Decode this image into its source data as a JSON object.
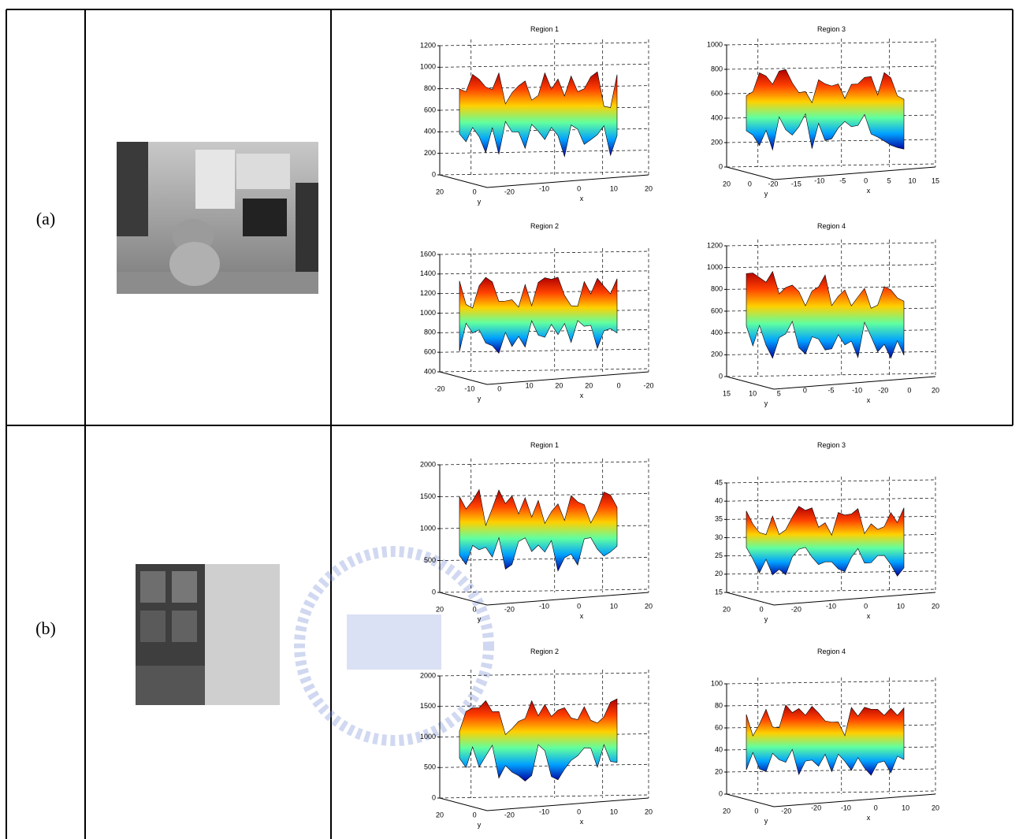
{
  "rows": [
    {
      "label": "(a)",
      "plots": [
        {
          "title": "Region 1",
          "zticks": [
            "0",
            "200",
            "400",
            "600",
            "800",
            "1000",
            "1200"
          ],
          "base_ticks": [
            "20",
            "0",
            "-20",
            "-10",
            "0",
            "10",
            "20"
          ],
          "xlabel": "x",
          "ylabel": "y"
        },
        {
          "title": "Region 3",
          "zticks": [
            "0",
            "200",
            "400",
            "600",
            "800",
            "1000"
          ],
          "base_ticks": [
            "20",
            "0",
            "-20",
            "-15",
            "-10",
            "-5",
            "0",
            "5",
            "10",
            "15"
          ],
          "xlabel": "x",
          "ylabel": "y"
        },
        {
          "title": "Region 2",
          "zticks": [
            "400",
            "600",
            "800",
            "1000",
            "1200",
            "1400",
            "1600"
          ],
          "base_ticks": [
            "-20",
            "-10",
            "0",
            "10",
            "20",
            "20",
            "0",
            "-20"
          ],
          "xlabel": "x",
          "ylabel": "y"
        },
        {
          "title": "Region 4",
          "zticks": [
            "0",
            "200",
            "400",
            "600",
            "800",
            "1000",
            "1200"
          ],
          "base_ticks": [
            "15",
            "10",
            "5",
            "0",
            "-5",
            "-10",
            "-20",
            "0",
            "20"
          ],
          "xlabel": "x",
          "ylabel": "y"
        }
      ]
    },
    {
      "label": "(b)",
      "plots": [
        {
          "title": "Region 1",
          "zticks": [
            "0",
            "500",
            "1000",
            "1500",
            "2000"
          ],
          "base_ticks": [
            "20",
            "0",
            "-20",
            "-10",
            "0",
            "10",
            "20"
          ],
          "xlabel": "x",
          "ylabel": "y"
        },
        {
          "title": "Region 3",
          "zticks": [
            "15",
            "20",
            "25",
            "30",
            "35",
            "40",
            "45"
          ],
          "base_ticks": [
            "20",
            "0",
            "-20",
            "-10",
            "0",
            "10",
            "20"
          ],
          "xlabel": "x",
          "ylabel": "y"
        },
        {
          "title": "Region 2",
          "zticks": [
            "0",
            "500",
            "1000",
            "1500",
            "2000"
          ],
          "base_ticks": [
            "20",
            "0",
            "-20",
            "-10",
            "0",
            "10",
            "20"
          ],
          "xlabel": "x",
          "ylabel": "y"
        },
        {
          "title": "Region 4",
          "zticks": [
            "0",
            "20",
            "40",
            "60",
            "80",
            "100"
          ],
          "base_ticks": [
            "20",
            "0",
            "-20",
            "-20",
            "-10",
            "0",
            "10",
            "20"
          ],
          "xlabel": "x",
          "ylabel": "y"
        }
      ]
    }
  ]
}
